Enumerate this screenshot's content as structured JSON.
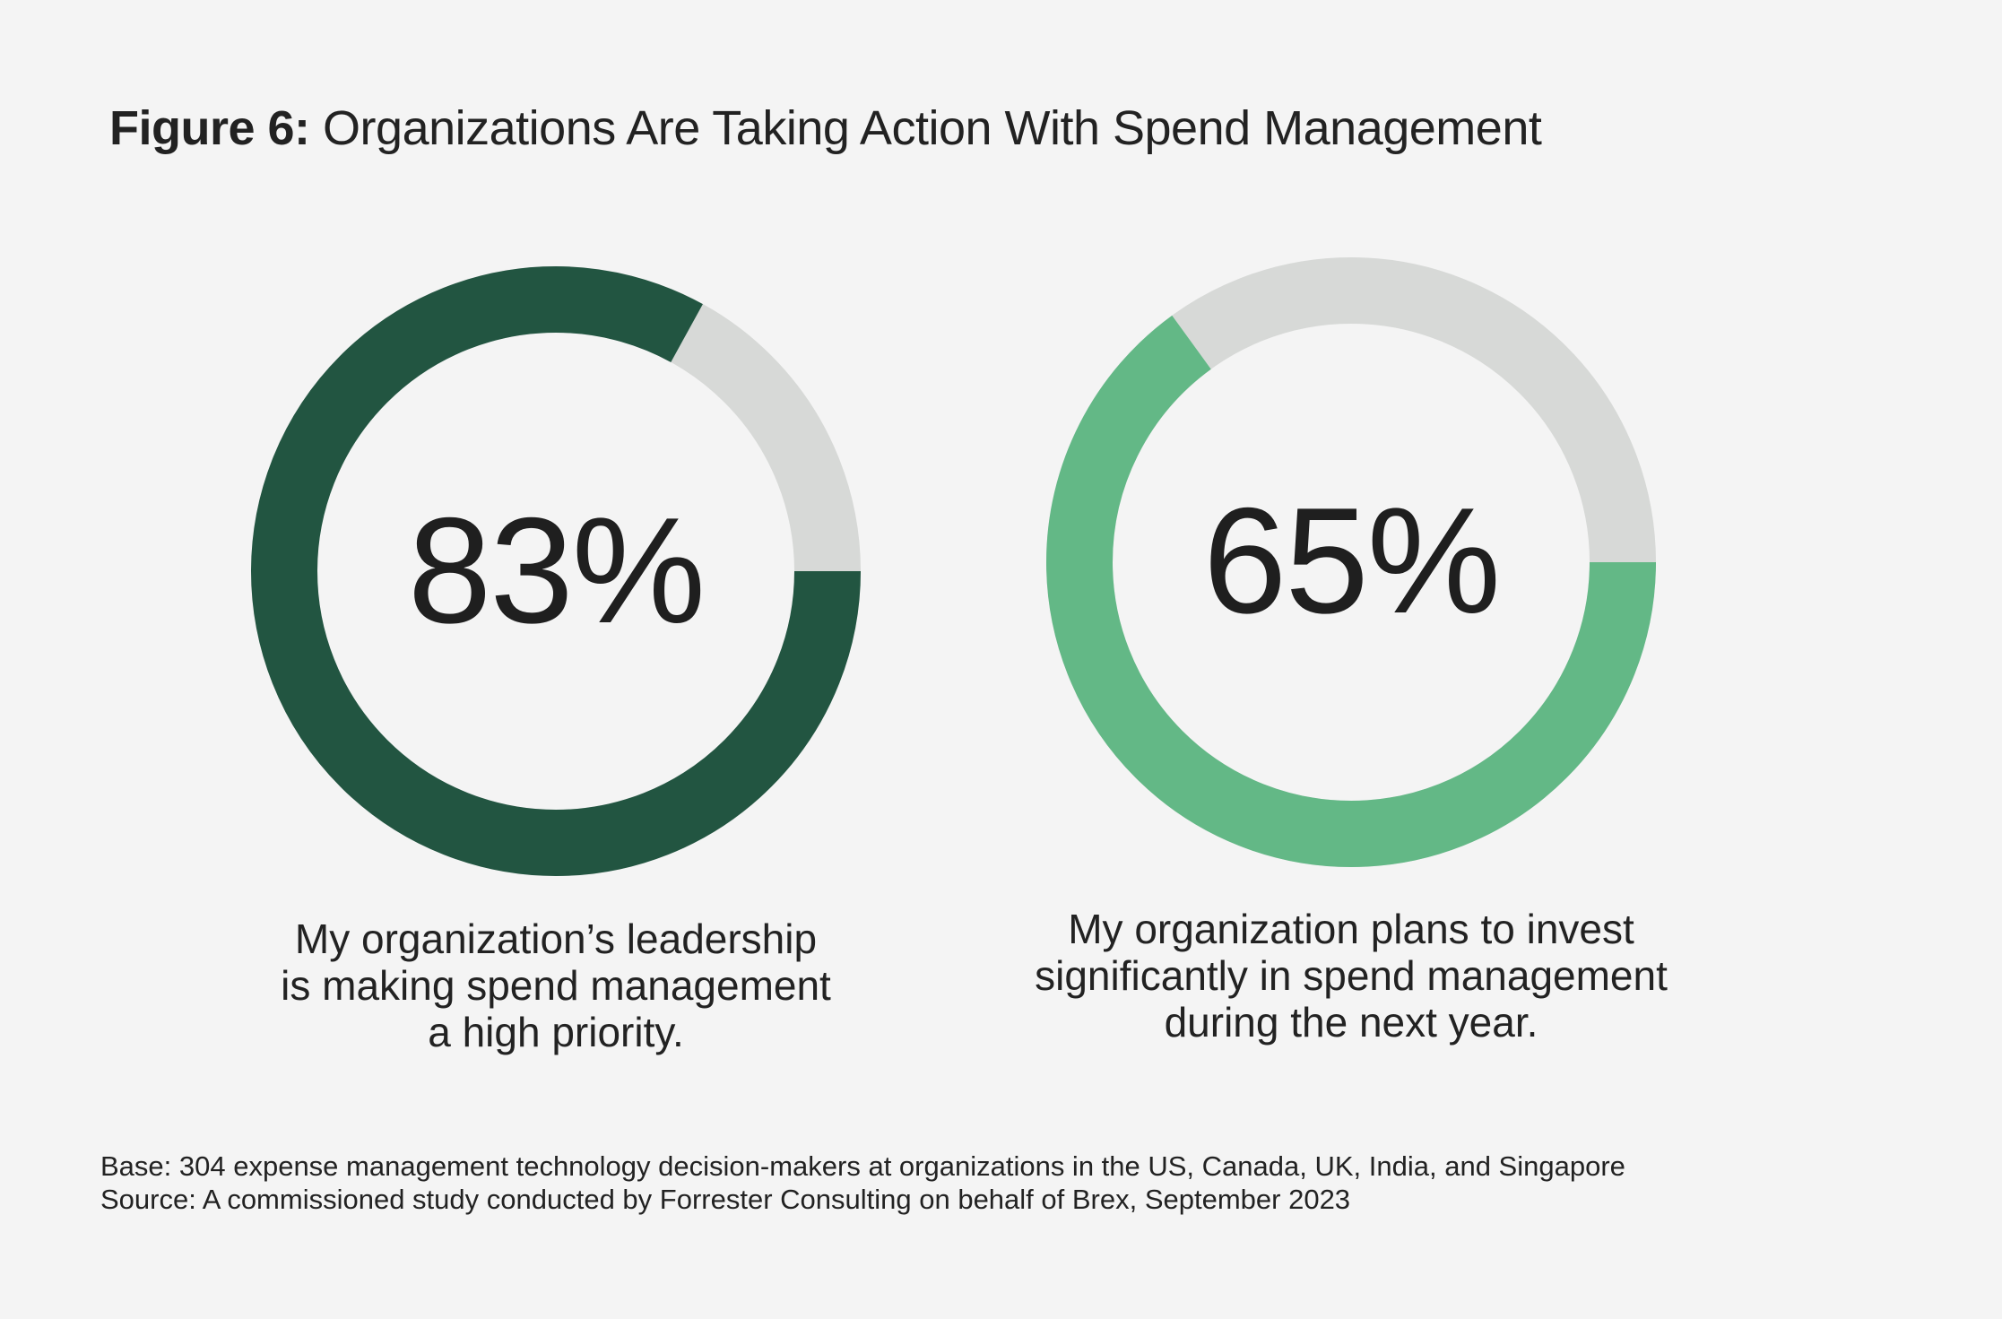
{
  "title": {
    "bold": "Figure 6:",
    "rest": "Organizations Are Taking Action With Spend Management"
  },
  "chart_data": [
    {
      "type": "pie",
      "variant": "donut",
      "value": 83,
      "label": "83%",
      "caption": [
        "My organization’s leadership",
        "is making spend management",
        "a high priority."
      ],
      "colors": {
        "fill": "#225541",
        "track": "#d7d9d7"
      }
    },
    {
      "type": "pie",
      "variant": "donut",
      "value": 65,
      "label": "65%",
      "caption": [
        "My organization plans to invest",
        "significantly in spend management",
        "during the next year."
      ],
      "colors": {
        "fill": "#63b886",
        "track": "#d7d9d7"
      }
    }
  ],
  "footnote": {
    "base": "Base: 304 expense management technology decision-makers at organizations in the US, Canada, UK, India, and Singapore",
    "source": "Source: A commissioned study conducted by Forrester Consulting on behalf of Brex, September 2023"
  }
}
